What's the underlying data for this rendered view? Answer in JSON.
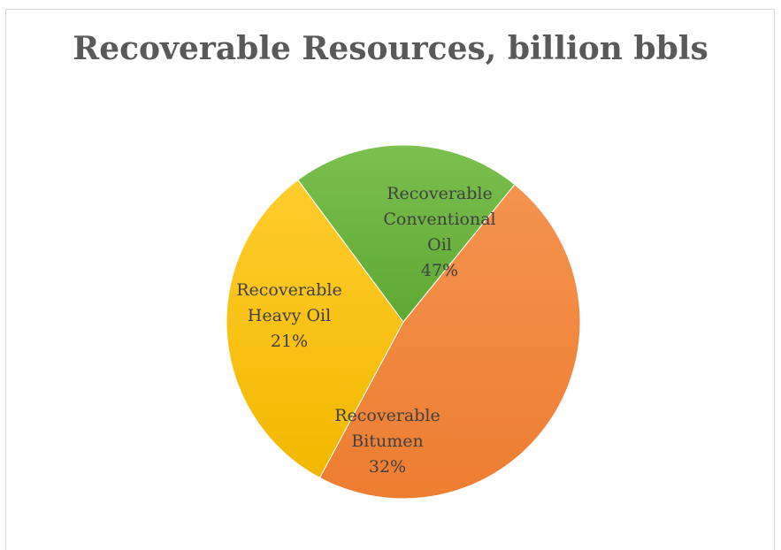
{
  "chart_data": {
    "type": "pie",
    "title": "Recoverable Resources, billion bbls",
    "slices": [
      {
        "label_lines": [
          "Recoverable",
          "Conventional",
          "Oil"
        ],
        "percent": "47%",
        "value": 47,
        "color": "#ED7D31",
        "color_light": "#F4934F"
      },
      {
        "label_lines": [
          "Recoverable",
          "Bitumen"
        ],
        "percent": "32%",
        "value": 32,
        "color": "#F2B800",
        "color_light": "#FFCC2E"
      },
      {
        "label_lines": [
          "Recoverable",
          "Heavy Oil"
        ],
        "percent": "21%",
        "value": 21,
        "color": "#5EA834",
        "color_light": "#7CC04F"
      }
    ],
    "start_angle_deg": 39,
    "direction": "clockwise",
    "legend": "none",
    "data_labels": "inside"
  }
}
